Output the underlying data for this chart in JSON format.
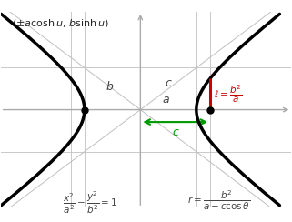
{
  "bg_color": "#ffffff",
  "a": 1.0,
  "b": 0.75,
  "c": 1.25,
  "xlim": [
    -2.5,
    2.7
  ],
  "ylim": [
    -1.75,
    1.75
  ],
  "axis_color": "#aaaaaa",
  "hyperbola_color": "#000000",
  "hyperbola_lw": 2.5,
  "asymptote_color": "#c0c0c0",
  "asymptote_lw": 0.7,
  "grid_color": "#c0c0c0",
  "grid_lw": 0.6,
  "label_a": "a",
  "label_b": "b",
  "label_c": "c",
  "green_color": "#009900",
  "red_color": "#cc0000",
  "dot_color": "#000000",
  "dot_size": 5,
  "label_fontsize": 9,
  "formula_fontsize": 7.5,
  "param_fontsize": 8
}
